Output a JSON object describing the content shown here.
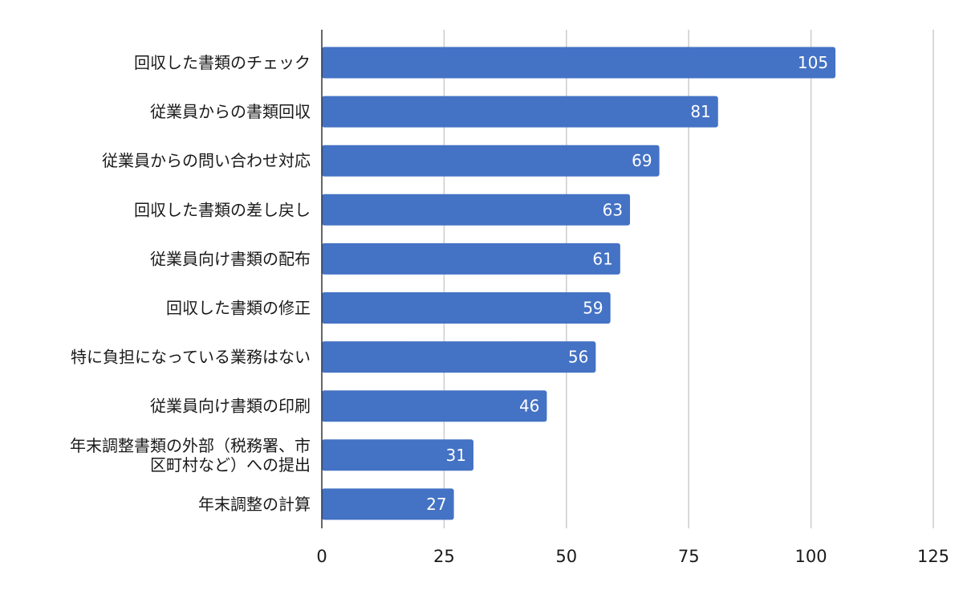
{
  "chart_data": {
    "type": "bar",
    "orientation": "horizontal",
    "categories": [
      "回収した書類のチェック",
      "従業員からの書類回収",
      "従業員からの問い合わせ対応",
      "回収した書類の差し戻し",
      "従業員向け書類の配布",
      "回収した書類の修正",
      "特に負担になっている業務はない",
      "従業員向け書類の印刷",
      "年末調整書類の外部（税務署、市区町村など）への提出",
      "年末調整の計算"
    ],
    "values": [
      105,
      81,
      69,
      63,
      61,
      59,
      56,
      46,
      31,
      27
    ],
    "xlim": [
      0,
      125
    ],
    "xticks": [
      "0",
      "25",
      "50",
      "75",
      "100",
      "125"
    ],
    "title": "",
    "xlabel": "",
    "ylabel": "",
    "grid": "vertical",
    "legend": "none",
    "data_labels": "inside-end",
    "colors": {
      "bar": "#4472c4",
      "grid": "#cccccc",
      "axis": "#333333"
    }
  }
}
